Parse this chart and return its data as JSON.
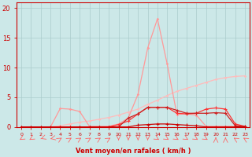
{
  "x_vals": [
    0,
    1,
    2,
    3,
    4,
    5,
    6,
    7,
    8,
    9,
    10,
    11,
    12,
    13,
    14,
    15,
    16,
    17,
    18,
    19,
    20,
    21,
    22,
    23
  ],
  "x_labels": [
    "0",
    "1",
    "2",
    "3",
    "4",
    "5",
    "6",
    "7",
    "8",
    "9",
    "10",
    "11",
    "12",
    "13",
    "14",
    "15",
    "16",
    "17",
    "18",
    "19",
    "20",
    "21",
    "22",
    "23"
  ],
  "line_peak_y": [
    0,
    0,
    0,
    0,
    3.1,
    3.0,
    2.6,
    0.1,
    0.1,
    0.1,
    0.5,
    1.5,
    5.5,
    13.3,
    18.2,
    10.6,
    2.1,
    2.2,
    2.0,
    0.1,
    0.1,
    0.1,
    0.1,
    0.1
  ],
  "line_hump_y": [
    0,
    0,
    0,
    0,
    0,
    0,
    0,
    0,
    0,
    0,
    0,
    0,
    0.3,
    0.4,
    0.5,
    0.5,
    0.4,
    0.3,
    0.2,
    0.0,
    0,
    0,
    0,
    0
  ],
  "line_flat_y": [
    0,
    0,
    0,
    0,
    0,
    0,
    0,
    0,
    0,
    0,
    0.4,
    1.0,
    2.2,
    3.3,
    3.3,
    3.3,
    2.3,
    2.2,
    2.3,
    3.0,
    3.2,
    3.0,
    0.5,
    0.1
  ],
  "line_bell_y": [
    0,
    0,
    0,
    0,
    0,
    0,
    0,
    0,
    0,
    0,
    0,
    1.5,
    2.2,
    3.3,
    3.3,
    3.3,
    2.8,
    2.3,
    2.3,
    2.3,
    2.4,
    2.3,
    0.2,
    0.1
  ],
  "line_diag_y": [
    0,
    0,
    0,
    0,
    0.2,
    0.5,
    0.8,
    1.0,
    1.3,
    1.6,
    2.0,
    2.5,
    3.0,
    3.8,
    4.5,
    5.3,
    6.0,
    6.5,
    7.0,
    7.5,
    8.0,
    8.3,
    8.5,
    8.6
  ],
  "bg_color": "#cce8e8",
  "grid_color": "#aacccc",
  "col_peak": "#ff9999",
  "col_hump": "#cc0000",
  "col_flat": "#ff3333",
  "col_bell": "#cc2222",
  "col_diag": "#ffbbbb",
  "col_axis": "#cc0000",
  "col_tick": "#cc0000",
  "col_xlabel": "#cc0000",
  "ylim": [
    0,
    21
  ],
  "xlim": [
    -0.5,
    23.5
  ],
  "yticks": [
    0,
    5,
    10,
    15,
    20
  ],
  "xlabel": "Vent moyen/en rafales ( km/h )",
  "arrow_angles_deg": [
    225,
    225,
    210,
    200,
    45,
    45,
    45,
    45,
    45,
    45,
    270,
    270,
    270,
    270,
    315,
    315,
    315,
    315,
    315,
    315,
    90,
    90,
    135,
    135
  ]
}
